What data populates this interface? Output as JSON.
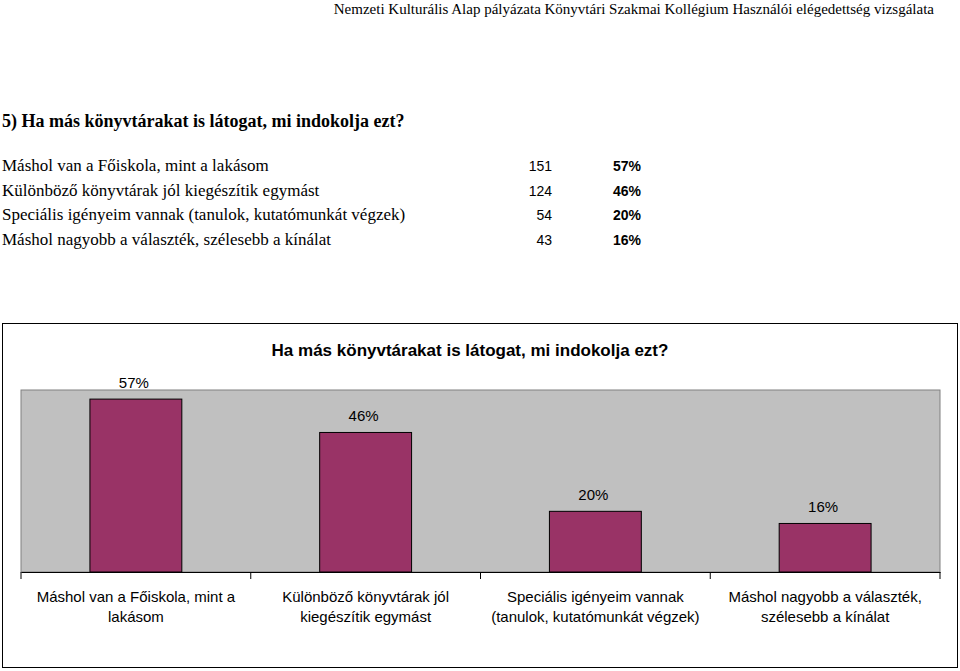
{
  "header": "Nemzeti Kulturális Alap pályázata Könyvtári Szakmai Kollégium Használói elégedettség vizsgálata",
  "question": "5) Ha más könyvtárakat is látogat, mi indokolja ezt?",
  "table": {
    "rows": [
      [
        "Máshol van a Főiskola, mint a lakásom",
        151,
        "57%"
      ],
      [
        "Különböző könyvtárak jól kiegészítik egymást",
        124,
        "46%"
      ],
      [
        "Speciális igényeim vannak (tanulok, kutatómunkát végzek)",
        54,
        "20%"
      ],
      [
        "Máshol nagyobb a választék, szélesebb a kínálat",
        43,
        "16%"
      ]
    ]
  },
  "chart_data": {
    "type": "bar",
    "title": "Ha más könyvtárakat is látogat, mi indokolja ezt?",
    "categories": [
      "Máshol van a Főiskola, mint a lakásom",
      "Különböző könyvtárak jól kiegészítik egymást",
      "Speciális igényeim vannak (tanulok, kutatómunkát végzek)",
      "Máshol nagyobb a választék, szélesebb a kínálat"
    ],
    "values": [
      57,
      46,
      20,
      16
    ],
    "value_labels": [
      "57%",
      "46%",
      "20%",
      "16%"
    ],
    "color": "#993366",
    "ylim": [
      0,
      60
    ],
    "data_labels": true,
    "tick_labels": "x"
  }
}
